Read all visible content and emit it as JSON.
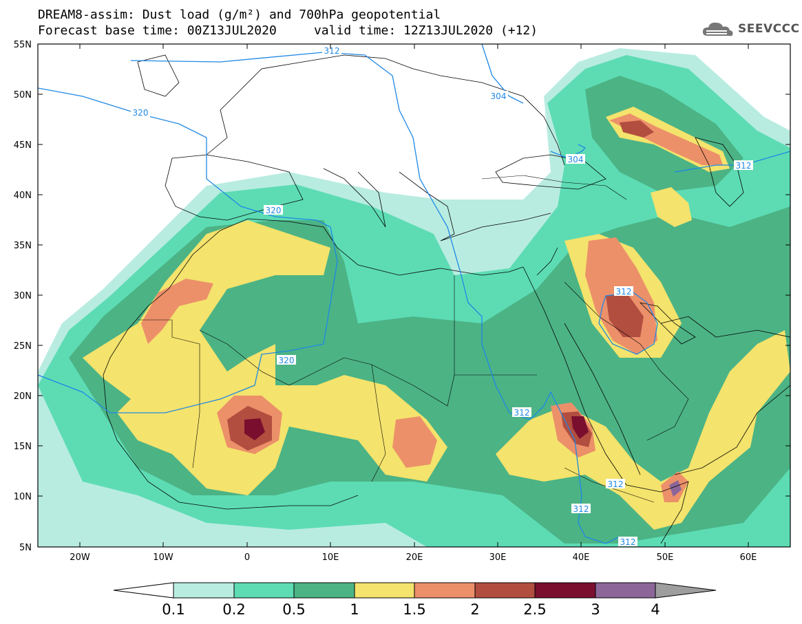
{
  "title": {
    "line1": "DREAM8-assim: Dust load (g/m²) and 700hPa geopotential",
    "line2": "Forecast base time: 00Z13JUL2020     valid time: 12Z13JUL2020 (+12)"
  },
  "logo": {
    "text": "SEEVCCC",
    "icon": "cloud-logo-icon"
  },
  "axes": {
    "lat_labels": [
      "55N",
      "50N",
      "45N",
      "40N",
      "35N",
      "30N",
      "25N",
      "20N",
      "15N",
      "10N",
      "5N"
    ],
    "lon_labels": [
      "20W",
      "10W",
      "0",
      "10E",
      "20E",
      "30E",
      "40E",
      "50E",
      "60E"
    ],
    "lat_range": [
      5,
      55
    ],
    "lon_range": [
      -25,
      65
    ]
  },
  "colorbar": {
    "levels": [
      "0.1",
      "0.2",
      "0.5",
      "1",
      "1.5",
      "2",
      "2.5",
      "3",
      "4"
    ],
    "colors": [
      "#b9ece1",
      "#5ddcb4",
      "#4cb385",
      "#f4e36c",
      "#ec906a",
      "#b24e3f",
      "#7a0e2e",
      "#8c6699",
      "#9e9e9e"
    ],
    "under_color": "#ffffff"
  },
  "contours": {
    "color": "#1e88e5",
    "labels": [
      "312",
      "304",
      "320",
      "304",
      "312",
      "320",
      "320",
      "312",
      "312",
      "312",
      "312",
      "312"
    ]
  }
}
